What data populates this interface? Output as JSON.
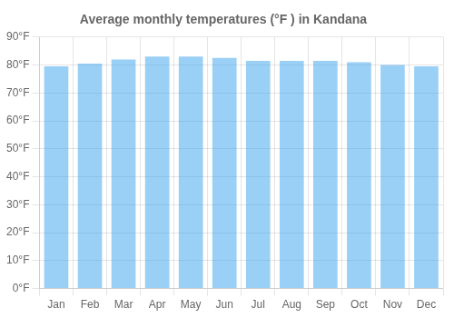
{
  "chart_data": {
    "type": "bar",
    "title": "Average monthly temperatures (°F ) in Kandana",
    "categories": [
      "Jan",
      "Feb",
      "Mar",
      "Apr",
      "May",
      "Jun",
      "Jul",
      "Aug",
      "Sep",
      "Oct",
      "Nov",
      "Dec"
    ],
    "values": [
      79.5,
      80.5,
      82.0,
      83.0,
      83.0,
      82.5,
      81.5,
      81.5,
      81.5,
      81.0,
      80.0,
      79.5
    ],
    "ylim": [
      0,
      90
    ],
    "yticks": [
      {
        "value": 0,
        "label": "0°F"
      },
      {
        "value": 10,
        "label": "10°F"
      },
      {
        "value": 20,
        "label": "20°F"
      },
      {
        "value": 30,
        "label": "30°F"
      },
      {
        "value": 40,
        "label": "40°F"
      },
      {
        "value": 50,
        "label": "50°F"
      },
      {
        "value": 60,
        "label": "60°F"
      },
      {
        "value": 70,
        "label": "70°F"
      },
      {
        "value": 80,
        "label": "80°F"
      },
      {
        "value": 90,
        "label": "90°F"
      }
    ],
    "grid": true
  }
}
